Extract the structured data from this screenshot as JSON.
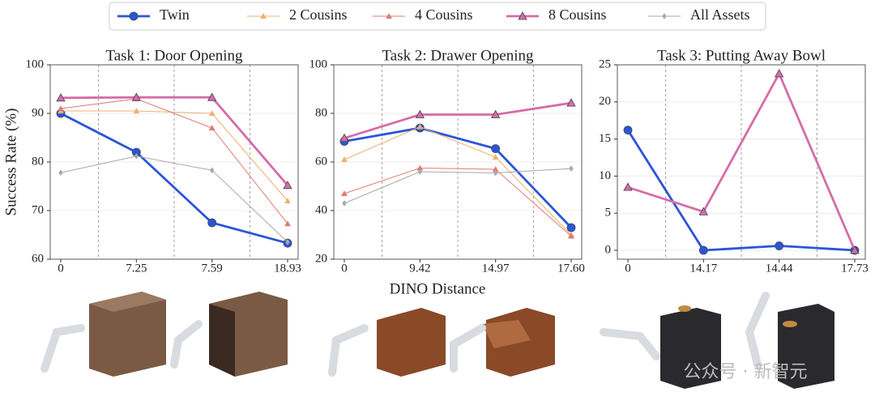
{
  "figure": {
    "ylabel": "Success Rate (%)",
    "xlabel": "DINO Distance",
    "watermark": "公众号 · 新智元"
  },
  "chart_data": [
    {
      "type": "line",
      "title": "Task 1: Door Opening",
      "categories": [
        "0",
        "7.25",
        "7.59",
        "18.93"
      ],
      "ylim": [
        60,
        100
      ],
      "yticks": [
        60,
        70,
        80,
        90,
        100
      ],
      "grid": true,
      "series": [
        {
          "name": "Twin",
          "color": "#2b55d9",
          "marker": "circle",
          "values": [
            90,
            82,
            67.5,
            63.3
          ]
        },
        {
          "name": "2 Cousins",
          "color": "#f0b070",
          "marker": "triangle",
          "values": [
            90.5,
            90.5,
            90,
            72
          ]
        },
        {
          "name": "4 Cousins",
          "color": "#e07a70",
          "marker": "triangle",
          "values": [
            91,
            93,
            87,
            67.3
          ]
        },
        {
          "name": "8 Cousins",
          "color": "#d66ca8",
          "marker": "triangle",
          "values": [
            93.2,
            93.3,
            93.3,
            75.2
          ]
        },
        {
          "name": "All Assets",
          "color": "#a8a8a8",
          "marker": "diamond",
          "values": [
            77.8,
            81.2,
            78.3,
            63.5
          ]
        }
      ]
    },
    {
      "type": "line",
      "title": "Task 2: Drawer Opening",
      "categories": [
        "0",
        "9.42",
        "14.97",
        "17.60"
      ],
      "ylim": [
        20,
        100
      ],
      "yticks": [
        20,
        40,
        60,
        80,
        100
      ],
      "grid": true,
      "series": [
        {
          "name": "Twin",
          "color": "#2b55d9",
          "marker": "circle",
          "values": [
            68.5,
            74,
            65.5,
            33
          ]
        },
        {
          "name": "2 Cousins",
          "color": "#f0b070",
          "marker": "triangle",
          "values": [
            61,
            74.5,
            62,
            30
          ]
        },
        {
          "name": "4 Cousins",
          "color": "#e07a70",
          "marker": "triangle",
          "values": [
            47,
            57.5,
            57,
            29.5
          ]
        },
        {
          "name": "8 Cousins",
          "color": "#d66ca8",
          "marker": "triangle",
          "values": [
            69.8,
            79.5,
            79.5,
            84.3
          ]
        },
        {
          "name": "All Assets",
          "color": "#a8a8a8",
          "marker": "diamond",
          "values": [
            43,
            56,
            55.5,
            57.3
          ]
        }
      ]
    },
    {
      "type": "line",
      "title": "Task 3: Putting Away Bowl",
      "categories": [
        "0",
        "14.17",
        "14.44",
        "17.73"
      ],
      "ylim": [
        -1.2,
        25
      ],
      "yticks": [
        0,
        5,
        10,
        15,
        20,
        25
      ],
      "grid": true,
      "series": [
        {
          "name": "Twin",
          "color": "#2b55d9",
          "marker": "circle",
          "values": [
            16.2,
            0,
            0.6,
            0
          ]
        },
        {
          "name": "8 Cousins",
          "color": "#d66ca8",
          "marker": "triangle",
          "values": [
            8.5,
            5.2,
            23.8,
            0
          ]
        }
      ]
    }
  ]
}
